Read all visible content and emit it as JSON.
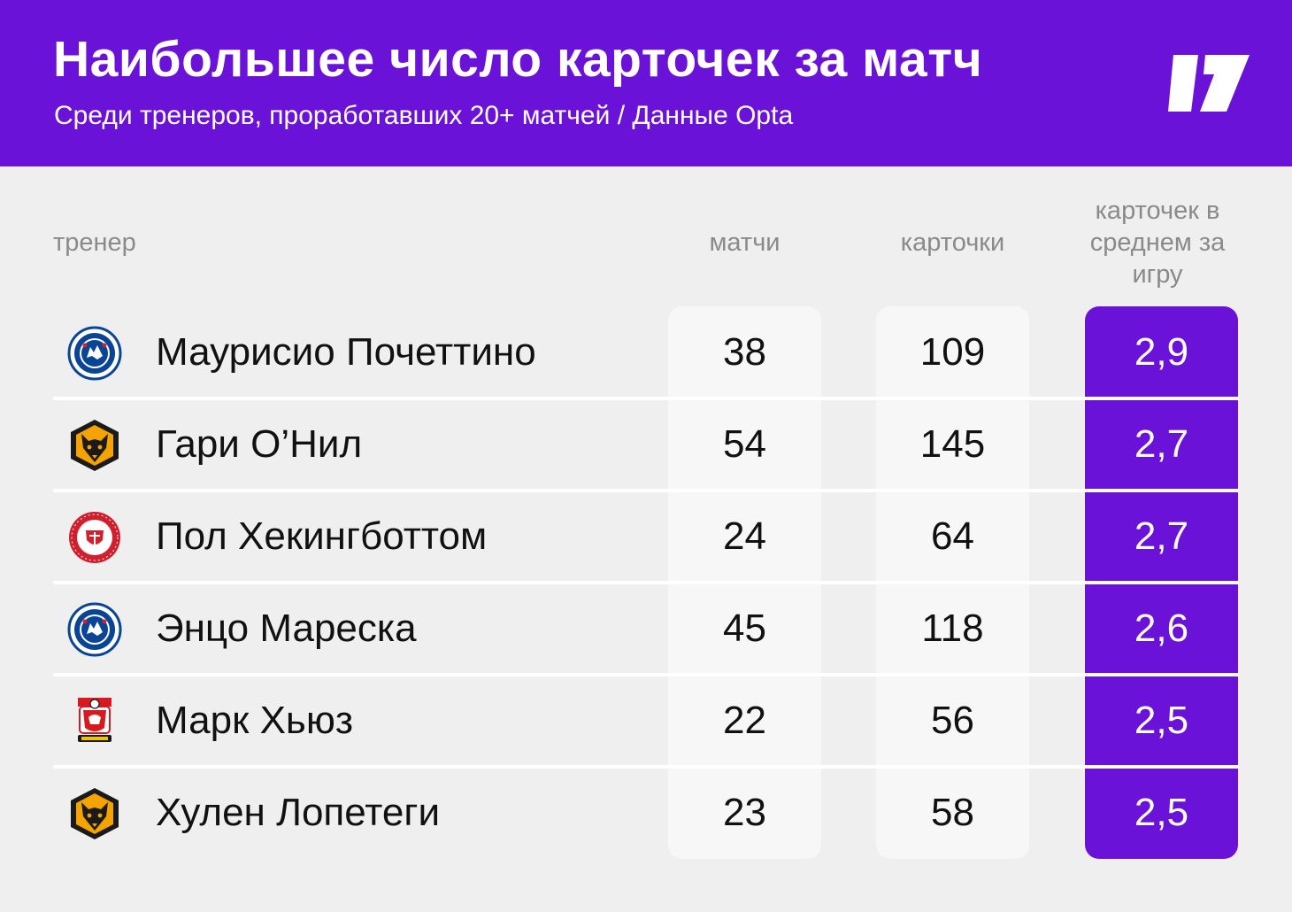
{
  "header": {
    "title": "Наибольшее число карточек за матч",
    "subtitle": "Среди тренеров, проработавших 20+ матчей / Данные Opta",
    "logo_icon": "publisher-logo-icon"
  },
  "colors": {
    "accent": "#6b12d8",
    "background": "#efefef",
    "panel": "#f7f7f7"
  },
  "chart_data": {
    "type": "table",
    "columns": {
      "trainer": "тренер",
      "matches": "матчи",
      "cards": "карточки",
      "avg": "карточек в среднем за игру"
    },
    "rows": [
      {
        "crest": "chelsea-crest-icon",
        "name": "Маурисио Почеттино",
        "matches": "38",
        "cards": "109",
        "avg": "2,9"
      },
      {
        "crest": "wolves-crest-icon",
        "name": "Гари О’Нил",
        "matches": "54",
        "cards": "145",
        "avg": "2,7"
      },
      {
        "crest": "sheffield-united-crest-icon",
        "name": "Пол Хекингботтом",
        "matches": "24",
        "cards": "64",
        "avg": "2,7"
      },
      {
        "crest": "chelsea-crest-icon",
        "name": "Энцо Мареска",
        "matches": "45",
        "cards": "118",
        "avg": "2,6"
      },
      {
        "crest": "southampton-crest-icon",
        "name": "Марк Хьюз",
        "matches": "22",
        "cards": "56",
        "avg": "2,5"
      },
      {
        "crest": "wolves-crest-icon",
        "name": "Хулен Лопетеги",
        "matches": "23",
        "cards": "58",
        "avg": "2,5"
      }
    ]
  }
}
